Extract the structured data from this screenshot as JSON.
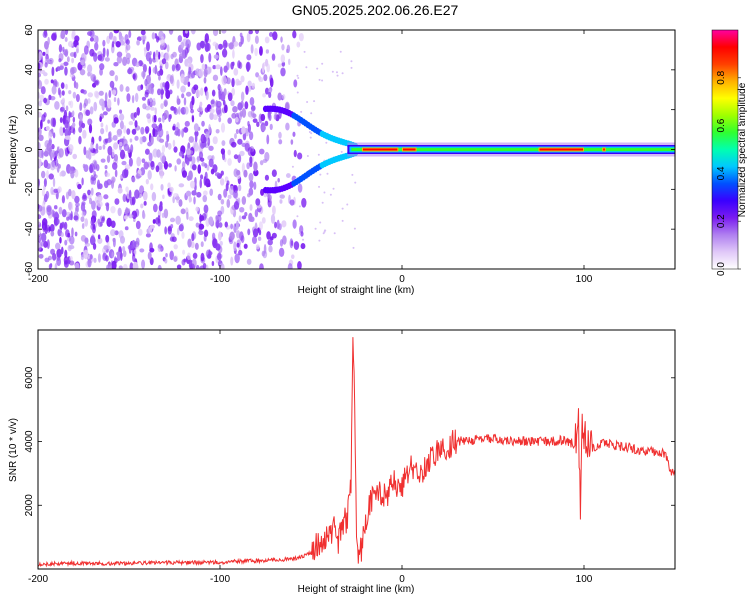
{
  "title": "GN05.2025.202.06.26.E27",
  "charts": [
    {
      "type": "heatmap",
      "xlabel": "Height of straight line (km)",
      "ylabel": "Frequency (Hz)",
      "xlim": [
        -200,
        150
      ],
      "ylim": [
        -60,
        60
      ],
      "xticks": [
        -200,
        -100,
        0,
        100
      ],
      "yticks": [
        -60,
        -40,
        -20,
        0,
        20,
        40,
        60
      ],
      "colorbar": {
        "label": "Normalized spectral amplitude",
        "range": [
          0,
          1
        ],
        "ticks": [
          "0.0",
          "0.2",
          "0.4",
          "0.6",
          "0.8"
        ],
        "colormap": [
          "#ffffff",
          "#e0c8f8",
          "#b080f0",
          "#7a1cf0",
          "#3a00ff",
          "#0050ff",
          "#00c8ff",
          "#00ffb0",
          "#30ff30",
          "#a0ff00",
          "#ffff00",
          "#ffb000",
          "#ff4000",
          "#ff0000",
          "#ff00a0"
        ]
      },
      "features": {
        "noise_region_x": [
          -200,
          -60
        ],
        "fringe_x": [
          -75,
          -25
        ],
        "band_center_hz": 0,
        "band_start_x": -30,
        "band_end_x": 150,
        "hot_segments_x": [
          [
            -22,
            -2
          ],
          [
            0,
            8
          ],
          [
            75,
            100
          ],
          [
            110,
            112
          ]
        ]
      }
    },
    {
      "type": "line",
      "xlabel": "Height of straight line (km)",
      "ylabel": "SNR (10 * v/v)",
      "xlim": [
        -200,
        150
      ],
      "ylim": [
        0,
        7500
      ],
      "xticks": [
        -200,
        -100,
        0,
        100
      ],
      "yticks": [
        2000,
        4000,
        6000
      ],
      "series": [
        {
          "color": "#f03030",
          "x": [
            -200,
            -180,
            -160,
            -140,
            -120,
            -100,
            -90,
            -80,
            -70,
            -60,
            -55,
            -50,
            -45,
            -40,
            -38,
            -35,
            -33,
            -30,
            -28,
            -27,
            -26,
            -25,
            -24,
            -22,
            -20,
            -18,
            -15,
            -12,
            -10,
            -5,
            0,
            5,
            10,
            15,
            20,
            25,
            30,
            40,
            50,
            60,
            70,
            80,
            90,
            95,
            97,
            98,
            99,
            100,
            102,
            105,
            110,
            120,
            130,
            140,
            145,
            148,
            150
          ],
          "y": [
            150,
            180,
            170,
            190,
            200,
            210,
            240,
            260,
            280,
            320,
            380,
            520,
            800,
            1100,
            1300,
            900,
            1400,
            1600,
            2800,
            7300,
            5000,
            1200,
            300,
            700,
            1500,
            2000,
            2300,
            2500,
            2200,
            2700,
            2600,
            3200,
            3000,
            3400,
            3700,
            3900,
            4000,
            4050,
            4100,
            4000,
            4000,
            4000,
            4050,
            3900,
            4500,
            1700,
            4800,
            4300,
            3900,
            3800,
            3950,
            3850,
            3750,
            3650,
            3600,
            3000,
            3100
          ]
        }
      ]
    }
  ]
}
